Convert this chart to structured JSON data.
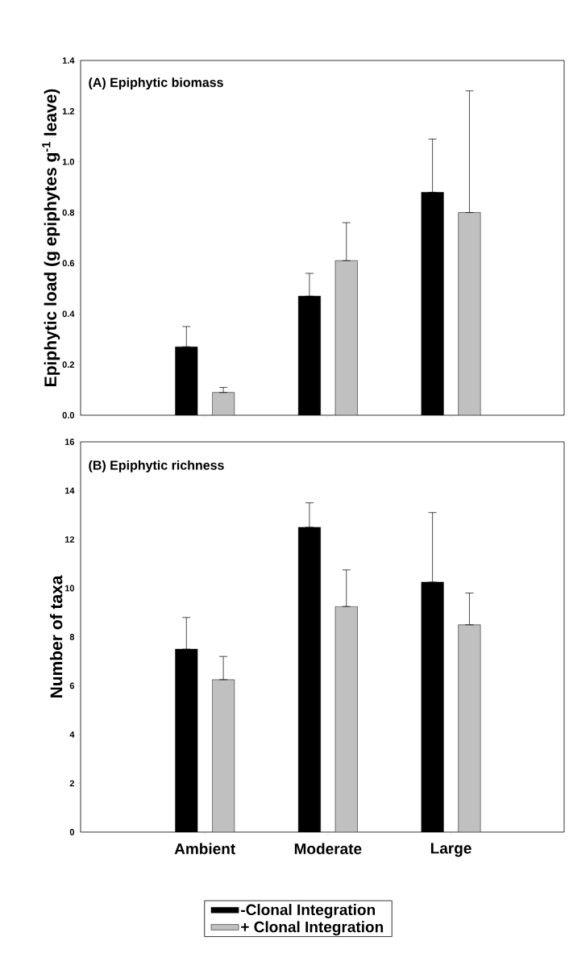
{
  "chart_data": [
    {
      "type": "bar",
      "title": "(A) Epiphytic biomass",
      "ylabel": "Epiphytic load (g epiphytes g$^{-1}$ leave)",
      "categories": [
        null,
        null,
        null
      ],
      "series": [
        {
          "color": "#000000",
          "values": [
            0.27,
            0.47,
            0.88
          ],
          "errors": [
            [
              0.27,
              0.35
            ],
            [
              0.47,
              0.56
            ],
            [
              0.88,
              1.09
            ]
          ]
        },
        {
          "color": "#c0c0c0",
          "values": [
            0.09,
            0.61,
            0.8
          ],
          "errors": [
            [
              0.09,
              0.11
            ],
            [
              0.61,
              0.76
            ],
            [
              0.8,
              1.28
            ]
          ]
        }
      ],
      "ylim": [
        0,
        1.4
      ],
      "yticks": [
        {
          "value": 0,
          "label": "0.0"
        },
        {
          "value": 0.2,
          "label": "0.2"
        },
        {
          "value": 0.4,
          "label": "0.4"
        },
        {
          "value": 0.6,
          "label": "0.6"
        },
        {
          "value": 0.8,
          "label": "0.8"
        },
        {
          "value": 1.0,
          "label": "1.0"
        },
        {
          "value": 1.2,
          "label": "1.2"
        },
        {
          "value": 1.4,
          "label": "1.4"
        }
      ],
      "tick_labels": "y"
    },
    {
      "type": "bar",
      "title": "(B) Epiphytic richness",
      "ylabel": "Number of taxa",
      "categories": [
        "Ambient",
        "Moderate",
        "Large"
      ],
      "series": [
        {
          "name": "-Clonal Integration",
          "color": "#000000",
          "values": [
            7.5,
            12.5,
            10.25
          ],
          "errors": [
            [
              7.5,
              8.8
            ],
            [
              12.5,
              13.5
            ],
            [
              10.25,
              13.1
            ]
          ]
        },
        {
          "name": "+ Clonal Integration",
          "color": "#c0c0c0",
          "values": [
            6.25,
            9.25,
            8.5
          ],
          "errors": [
            [
              6.25,
              7.2
            ],
            [
              9.25,
              10.75
            ],
            [
              8.5,
              9.8
            ]
          ]
        }
      ],
      "ylim": [
        0,
        16
      ],
      "yticks": [
        0,
        2,
        4,
        6,
        8,
        10,
        12,
        14,
        16
      ],
      "legend": "bottom"
    }
  ]
}
